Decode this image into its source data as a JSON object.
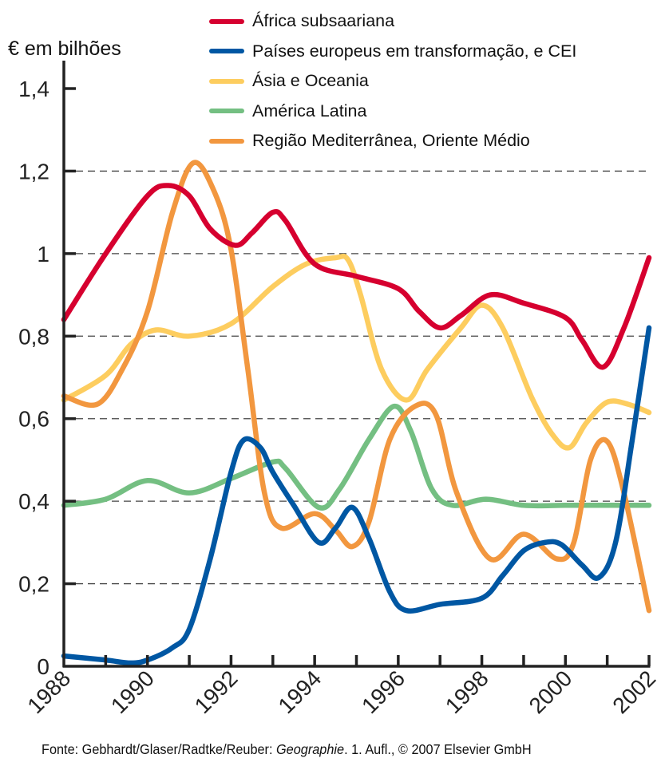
{
  "unit_label": "€ em bilhões",
  "source": {
    "prefix": "Fonte:  Gebhardt/Glaser/Radtke/Reuber: ",
    "title": "Geographie",
    "suffix": ". 1. Aufl., © 2007 Elsevier GmbH"
  },
  "chart_data": {
    "type": "line",
    "title": "",
    "xlabel": "",
    "ylabel": "€ em bilhões",
    "xlim": [
      1988,
      2002
    ],
    "ylim": [
      0,
      1.4
    ],
    "x_ticks": [
      1988,
      1989,
      1990,
      1991,
      1992,
      1993,
      1994,
      1995,
      1996,
      1997,
      1998,
      1999,
      2000,
      2001,
      2002
    ],
    "x_tick_labels": [
      "1988",
      "1990",
      "1992",
      "1994",
      "1996",
      "1998",
      "2000",
      "2002"
    ],
    "x_tick_label_values": [
      1988,
      1990,
      1992,
      1994,
      1996,
      1998,
      2000,
      2002
    ],
    "y_ticks": [
      0,
      0.2,
      0.4,
      0.6,
      0.8,
      1.0,
      1.2,
      1.4
    ],
    "y_tick_labels": [
      "0",
      "0,2",
      "0,4",
      "0,6",
      "0,8",
      "1",
      "1,2",
      "1,4"
    ],
    "grid": "horizontal-dashed",
    "legend_position": "top-right",
    "series": [
      {
        "name": "África subsaariana",
        "color": "#D6002F",
        "points": [
          [
            1988,
            0.84
          ],
          [
            1989,
            1.0
          ],
          [
            1990,
            1.14
          ],
          [
            1990.5,
            1.165
          ],
          [
            1991,
            1.14
          ],
          [
            1991.5,
            1.06
          ],
          [
            1992.1,
            1.02
          ],
          [
            1992.5,
            1.05
          ],
          [
            1993,
            1.1
          ],
          [
            1993.3,
            1.08
          ],
          [
            1994,
            0.975
          ],
          [
            1995,
            0.945
          ],
          [
            1996,
            0.915
          ],
          [
            1996.5,
            0.86
          ],
          [
            1997,
            0.82
          ],
          [
            1997.5,
            0.85
          ],
          [
            1998.2,
            0.9
          ],
          [
            1999,
            0.88
          ],
          [
            2000,
            0.845
          ],
          [
            2000.4,
            0.79
          ],
          [
            2000.9,
            0.725
          ],
          [
            2001.4,
            0.82
          ],
          [
            2002,
            0.99
          ]
        ]
      },
      {
        "name": "Países europeus em transformação, e CEI",
        "color": "#0057A3",
        "points": [
          [
            1988,
            0.025
          ],
          [
            1989,
            0.015
          ],
          [
            1989.6,
            0.008
          ],
          [
            1990,
            0.015
          ],
          [
            1990.6,
            0.045
          ],
          [
            1991,
            0.09
          ],
          [
            1991.5,
            0.26
          ],
          [
            1992,
            0.47
          ],
          [
            1992.3,
            0.548
          ],
          [
            1992.7,
            0.53
          ],
          [
            1993,
            0.47
          ],
          [
            1993.5,
            0.39
          ],
          [
            1994.1,
            0.3
          ],
          [
            1994.5,
            0.335
          ],
          [
            1994.9,
            0.385
          ],
          [
            1995.3,
            0.31
          ],
          [
            1995.8,
            0.18
          ],
          [
            1996.2,
            0.135
          ],
          [
            1997,
            0.15
          ],
          [
            1998,
            0.165
          ],
          [
            1998.5,
            0.22
          ],
          [
            1999,
            0.28
          ],
          [
            1999.5,
            0.3
          ],
          [
            1999.9,
            0.295
          ],
          [
            2000.4,
            0.245
          ],
          [
            2000.8,
            0.215
          ],
          [
            2001.2,
            0.3
          ],
          [
            2001.6,
            0.55
          ],
          [
            2002,
            0.82
          ]
        ]
      },
      {
        "name": "Ásia e Oceania",
        "color": "#FDCD5F",
        "points": [
          [
            1988,
            0.645
          ],
          [
            1989,
            0.705
          ],
          [
            1989.6,
            0.78
          ],
          [
            1990.2,
            0.815
          ],
          [
            1991,
            0.8
          ],
          [
            1992,
            0.83
          ],
          [
            1993,
            0.92
          ],
          [
            1993.8,
            0.975
          ],
          [
            1994.5,
            0.99
          ],
          [
            1994.8,
            0.985
          ],
          [
            1995.1,
            0.9
          ],
          [
            1995.6,
            0.72
          ],
          [
            1996.2,
            0.645
          ],
          [
            1996.7,
            0.72
          ],
          [
            1997.5,
            0.82
          ],
          [
            1998,
            0.875
          ],
          [
            1998.5,
            0.82
          ],
          [
            1999.2,
            0.65
          ],
          [
            1999.7,
            0.56
          ],
          [
            2000.1,
            0.53
          ],
          [
            2000.5,
            0.59
          ],
          [
            2001,
            0.64
          ],
          [
            2001.5,
            0.635
          ],
          [
            2002,
            0.615
          ]
        ]
      },
      {
        "name": "América Latina",
        "color": "#74BF82",
        "points": [
          [
            1988,
            0.39
          ],
          [
            1989,
            0.405
          ],
          [
            1990,
            0.45
          ],
          [
            1991,
            0.42
          ],
          [
            1992,
            0.455
          ],
          [
            1993,
            0.495
          ],
          [
            1993.3,
            0.48
          ],
          [
            1994.1,
            0.385
          ],
          [
            1994.6,
            0.43
          ],
          [
            1995.3,
            0.55
          ],
          [
            1995.9,
            0.63
          ],
          [
            1996.3,
            0.57
          ],
          [
            1996.8,
            0.43
          ],
          [
            1997.3,
            0.39
          ],
          [
            1998.1,
            0.405
          ],
          [
            1999,
            0.39
          ],
          [
            2000,
            0.39
          ],
          [
            2001,
            0.39
          ],
          [
            2002,
            0.39
          ]
        ]
      },
      {
        "name": "Região Mediterrânea, Oriente Médio",
        "color": "#F2973F",
        "points": [
          [
            1988,
            0.655
          ],
          [
            1988.8,
            0.635
          ],
          [
            1989.4,
            0.72
          ],
          [
            1990,
            0.86
          ],
          [
            1990.6,
            1.1
          ],
          [
            1991.1,
            1.22
          ],
          [
            1991.6,
            1.15
          ],
          [
            1992,
            1.01
          ],
          [
            1992.4,
            0.72
          ],
          [
            1992.8,
            0.42
          ],
          [
            1993.2,
            0.335
          ],
          [
            1994,
            0.37
          ],
          [
            1994.5,
            0.33
          ],
          [
            1994.9,
            0.29
          ],
          [
            1995.3,
            0.35
          ],
          [
            1995.8,
            0.55
          ],
          [
            1996.4,
            0.63
          ],
          [
            1996.9,
            0.61
          ],
          [
            1997.4,
            0.42
          ],
          [
            1998.2,
            0.26
          ],
          [
            1999,
            0.32
          ],
          [
            1999.8,
            0.26
          ],
          [
            2000.2,
            0.3
          ],
          [
            2000.6,
            0.5
          ],
          [
            2001,
            0.545
          ],
          [
            2001.4,
            0.42
          ],
          [
            2002,
            0.135
          ]
        ]
      }
    ]
  }
}
